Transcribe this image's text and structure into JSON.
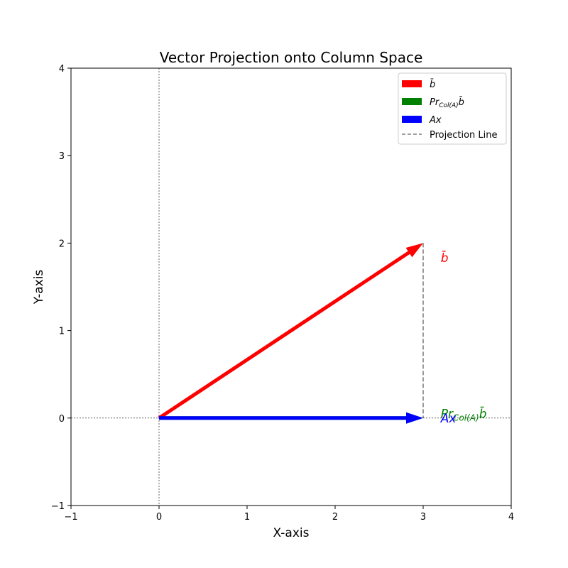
{
  "chart_data": {
    "type": "vector",
    "title": "Vector Projection onto Column Space",
    "xlabel": "X-axis",
    "ylabel": "Y-axis",
    "xlim": [
      -1,
      4
    ],
    "ylim": [
      -1,
      4
    ],
    "xticks": [
      -1,
      0,
      1,
      2,
      3,
      4
    ],
    "yticks": [
      -1,
      0,
      1,
      2,
      3,
      4
    ],
    "xtick_labels": [
      "−1",
      "0",
      "1",
      "2",
      "3",
      "4"
    ],
    "ytick_labels": [
      "−1",
      "0",
      "1",
      "2",
      "3",
      "4"
    ],
    "grid": false,
    "reference_lines": {
      "x": 0,
      "y": 0,
      "style": "dashed",
      "color": "#000000"
    },
    "legend_position": "top-right",
    "vectors": [
      {
        "id": "b",
        "label": "b̄",
        "from": [
          0,
          0
        ],
        "to": [
          3,
          2
        ],
        "color": "#ff0000",
        "annotation": "b̄",
        "annotation_at": [
          3.2,
          1.85
        ]
      },
      {
        "id": "proj",
        "label": "Pr",
        "subscript": "Col(A)",
        "suffix": "b̄",
        "from": [
          0,
          0
        ],
        "to": [
          3,
          0
        ],
        "color": "#008000",
        "annotation_at": [
          3.2,
          0.05
        ]
      },
      {
        "id": "ax",
        "label": "Ax",
        "from": [
          0,
          0
        ],
        "to": [
          3,
          0
        ],
        "color": "#0000ff",
        "annotation": "Ax",
        "annotation_at": [
          3.2,
          0.0
        ]
      }
    ],
    "projection_line": {
      "label": "Projection Line",
      "from": [
        3,
        2
      ],
      "to": [
        3,
        0
      ],
      "color": "#808080",
      "style": "dashed"
    }
  }
}
